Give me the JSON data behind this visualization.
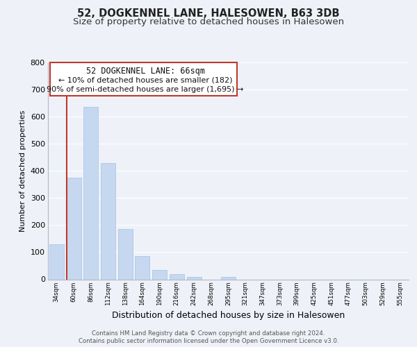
{
  "title": "52, DOGKENNEL LANE, HALESOWEN, B63 3DB",
  "subtitle": "Size of property relative to detached houses in Halesowen",
  "xlabel": "Distribution of detached houses by size in Halesowen",
  "ylabel": "Number of detached properties",
  "bar_labels": [
    "34sqm",
    "60sqm",
    "86sqm",
    "112sqm",
    "138sqm",
    "164sqm",
    "190sqm",
    "216sqm",
    "242sqm",
    "268sqm",
    "295sqm",
    "321sqm",
    "347sqm",
    "373sqm",
    "399sqm",
    "425sqm",
    "451sqm",
    "477sqm",
    "503sqm",
    "529sqm",
    "555sqm"
  ],
  "bar_values": [
    130,
    375,
    635,
    430,
    185,
    85,
    35,
    18,
    8,
    0,
    10,
    0,
    0,
    0,
    0,
    0,
    0,
    0,
    0,
    0,
    0
  ],
  "bar_color": "#c5d8f0",
  "bar_edge_color": "#aec6e8",
  "highlight_bar_color": "#c0392b",
  "ylim": [
    0,
    800
  ],
  "yticks": [
    0,
    100,
    200,
    300,
    400,
    500,
    600,
    700,
    800
  ],
  "ann_line1": "52 DOGKENNEL LANE: 66sqm",
  "ann_line2": "← 10% of detached houses are smaller (182)",
  "ann_line3": "90% of semi-detached houses are larger (1,695) →",
  "footer_line1": "Contains HM Land Registry data © Crown copyright and database right 2024.",
  "footer_line2": "Contains public sector information licensed under the Open Government Licence v3.0.",
  "background_color": "#eef2f8",
  "grid_color": "#ffffff",
  "title_fontsize": 10.5,
  "subtitle_fontsize": 9.5,
  "ylabel_fontsize": 8,
  "xlabel_fontsize": 9
}
